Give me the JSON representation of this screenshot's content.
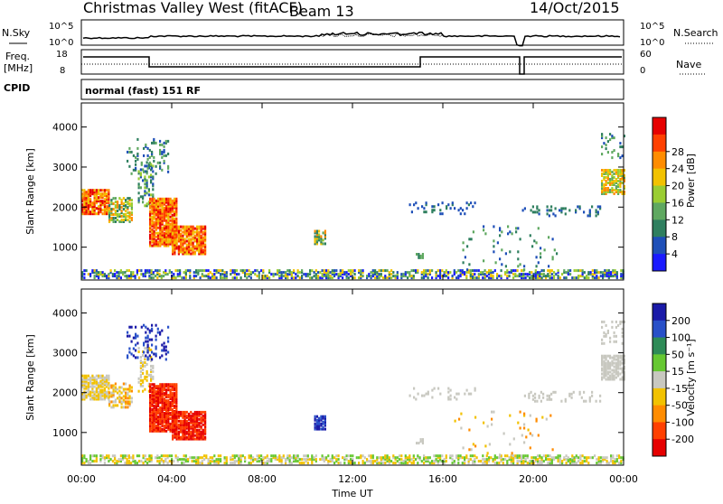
{
  "header": {
    "title": "Christmas Valley West (fitACF)",
    "beam": "Beam 13",
    "date": "14/Oct/2015"
  },
  "noise_panel": {
    "left_label": "N.Sky",
    "left_ticks": [
      "10^5",
      "10^0"
    ],
    "right_ticks": [
      "10^5",
      "10^0"
    ],
    "right_label": "N.Search"
  },
  "freq_panel": {
    "left_label_1": "Freq.",
    "left_label_2": "[MHz]",
    "left_ticks": [
      "18",
      "8"
    ],
    "right_ticks": [
      "60",
      "0"
    ],
    "right_label": "Nave"
  },
  "cpid": {
    "label": "CPID",
    "mode": "normal (fast) 151 RF"
  },
  "chart_data": [
    {
      "type": "heatmap",
      "quantity": "Power",
      "ylabel": "Slant Range [km]",
      "xlabel": "Time UT",
      "x_ticks": [
        "00:00",
        "04:00",
        "08:00",
        "12:00",
        "16:00",
        "20:00",
        "00:00"
      ],
      "y_ticks": [
        "1000",
        "2000",
        "3000",
        "4000"
      ],
      "ylim": [
        180,
        4600
      ],
      "colorbar": {
        "label": "Power [dB]",
        "tick_labels": [
          "4",
          "8",
          "12",
          "16",
          "20",
          "24",
          "28"
        ],
        "colors": [
          "#1a1aff",
          "#1e4fb8",
          "#2f7f5f",
          "#5fa860",
          "#9acd32",
          "#f2c200",
          "#ff8c00",
          "#ff4000",
          "#e60000"
        ]
      }
    },
    {
      "type": "heatmap",
      "quantity": "Velocity",
      "ylabel": "Slant Range [km]",
      "xlabel": "Time UT",
      "x_ticks": [
        "00:00",
        "04:00",
        "08:00",
        "12:00",
        "16:00",
        "20:00",
        "00:00"
      ],
      "y_ticks": [
        "1000",
        "2000",
        "3000",
        "4000"
      ],
      "ylim": [
        180,
        4600
      ],
      "colorbar": {
        "label": "Velocity [m s⁻¹]",
        "tick_labels": [
          "200",
          "100",
          "50",
          "15",
          "-15",
          "-50",
          "-100",
          "-200"
        ],
        "colors": [
          "#1a1aa8",
          "#2850c8",
          "#2e8b57",
          "#66c832",
          "#c8c8c0",
          "#f2c200",
          "#ff8c00",
          "#ff4000",
          "#e60000"
        ]
      }
    }
  ],
  "x_axis_label": "Time UT"
}
